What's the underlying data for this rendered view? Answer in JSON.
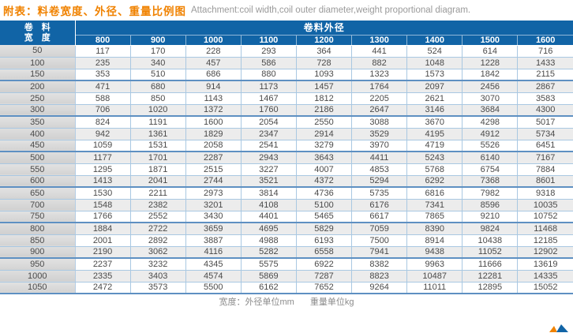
{
  "title": {
    "prefix_zh": "附表：料卷宽度、外径、重量比例图",
    "en": "Attachment:coil width,coil outer diameter,weight proportional diagram."
  },
  "table": {
    "corner_line1": "卷　料",
    "corner_line2": "宽　度",
    "group_header": "卷料外径",
    "columns": [
      "800",
      "900",
      "1000",
      "1100",
      "1200",
      "1300",
      "1400",
      "1500",
      "1600"
    ],
    "rows": [
      {
        "width": "50",
        "values": [
          "117",
          "170",
          "228",
          "293",
          "364",
          "441",
          "524",
          "614",
          "716"
        ]
      },
      {
        "width": "100",
        "values": [
          "235",
          "340",
          "457",
          "586",
          "728",
          "882",
          "1048",
          "1228",
          "1433"
        ]
      },
      {
        "width": "150",
        "values": [
          "353",
          "510",
          "686",
          "880",
          "1093",
          "1323",
          "1573",
          "1842",
          "2115"
        ]
      },
      {
        "width": "200",
        "values": [
          "471",
          "680",
          "914",
          "1173",
          "1457",
          "1764",
          "2097",
          "2456",
          "2867"
        ]
      },
      {
        "width": "250",
        "values": [
          "588",
          "850",
          "1143",
          "1467",
          "1812",
          "2205",
          "2621",
          "3070",
          "3583"
        ]
      },
      {
        "width": "300",
        "values": [
          "706",
          "1020",
          "1372",
          "1760",
          "2186",
          "2647",
          "3146",
          "3684",
          "4300"
        ]
      },
      {
        "width": "350",
        "values": [
          "824",
          "1191",
          "1600",
          "2054",
          "2550",
          "3088",
          "3670",
          "4298",
          "5017"
        ]
      },
      {
        "width": "400",
        "values": [
          "942",
          "1361",
          "1829",
          "2347",
          "2914",
          "3529",
          "4195",
          "4912",
          "5734"
        ]
      },
      {
        "width": "450",
        "values": [
          "1059",
          "1531",
          "2058",
          "2541",
          "3279",
          "3970",
          "4719",
          "5526",
          "6451"
        ]
      },
      {
        "width": "500",
        "values": [
          "1177",
          "1701",
          "2287",
          "2943",
          "3643",
          "4411",
          "5243",
          "6140",
          "7167"
        ]
      },
      {
        "width": "550",
        "values": [
          "1295",
          "1871",
          "2515",
          "3227",
          "4007",
          "4853",
          "5768",
          "6754",
          "7884"
        ]
      },
      {
        "width": "600",
        "values": [
          "1413",
          "2041",
          "2744",
          "3521",
          "4372",
          "5294",
          "6292",
          "7368",
          "8601"
        ]
      },
      {
        "width": "650",
        "values": [
          "1530",
          "2211",
          "2973",
          "3814",
          "4736",
          "5735",
          "6816",
          "7982",
          "9318"
        ]
      },
      {
        "width": "700",
        "values": [
          "1548",
          "2382",
          "3201",
          "4108",
          "5100",
          "6176",
          "7341",
          "8596",
          "10035"
        ]
      },
      {
        "width": "750",
        "values": [
          "1766",
          "2552",
          "3430",
          "4401",
          "5465",
          "6617",
          "7865",
          "9210",
          "10752"
        ]
      },
      {
        "width": "800",
        "values": [
          "1884",
          "2722",
          "3659",
          "4695",
          "5829",
          "7059",
          "8390",
          "9824",
          "11468"
        ]
      },
      {
        "width": "850",
        "values": [
          "2001",
          "2892",
          "3887",
          "4988",
          "6193",
          "7500",
          "8914",
          "10438",
          "12185"
        ]
      },
      {
        "width": "900",
        "values": [
          "2190",
          "3062",
          "4116",
          "5282",
          "6558",
          "7941",
          "9438",
          "11052",
          "12902"
        ]
      },
      {
        "width": "950",
        "values": [
          "2237",
          "3232",
          "4345",
          "5575",
          "6922",
          "8382",
          "9963",
          "11666",
          "13619"
        ]
      },
      {
        "width": "1000",
        "values": [
          "2335",
          "3403",
          "4574",
          "5869",
          "7287",
          "8823",
          "10487",
          "12281",
          "14335"
        ]
      },
      {
        "width": "1050",
        "values": [
          "2472",
          "3573",
          "5500",
          "6162",
          "7652",
          "9264",
          "11011",
          "12895",
          "15052"
        ]
      }
    ]
  },
  "footer": {
    "width_note": "宽度：外径单位mm",
    "weight_note": "重量单位kg"
  },
  "colors": {
    "header_blue": "#1164a6",
    "accent_orange": "#f08200",
    "row_alt_gray": "#ececec",
    "grid_blue_thin": "#a9c8e2",
    "grid_blue_thick": "#5e90c2"
  }
}
